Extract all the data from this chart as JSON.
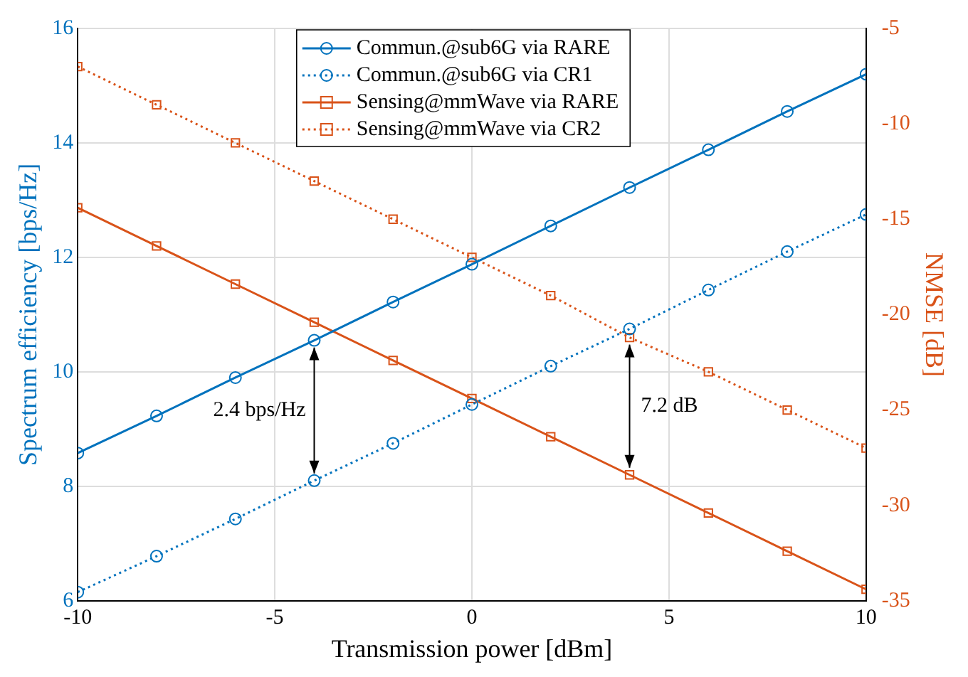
{
  "chart_data": {
    "type": "line",
    "xlabel": "Transmission power [dBm]",
    "ylabel": "Spectrum efficiency [bps/Hz]",
    "y2label": "NMSE [dB]",
    "x": [
      -10,
      -8,
      -6,
      -4,
      -2,
      0,
      2,
      4,
      6,
      8,
      10
    ],
    "series": [
      {
        "name": "Commun.@sub6G via RARE",
        "color": "#0072bd",
        "marker": "circle",
        "line_style": "solid",
        "values": [
          8.58,
          9.23,
          9.9,
          10.55,
          11.22,
          11.88,
          12.55,
          13.22,
          13.88,
          14.55,
          15.2
        ]
      },
      {
        "name": "Commun.@sub6G via CR1",
        "color": "#0072bd",
        "marker": "circle",
        "line_style": "dotted",
        "values": [
          6.15,
          6.78,
          7.43,
          8.1,
          8.75,
          9.43,
          10.1,
          10.75,
          11.43,
          12.1,
          12.75
        ]
      },
      {
        "name": "Sensing@mmWave via RARE",
        "color": "#d95319",
        "marker": "square",
        "line_style": "solid",
        "axis": "y2",
        "values": [
          -14.4,
          -16.4,
          -18.4,
          -20.4,
          -22.4,
          -24.4,
          -26.4,
          -28.4,
          -30.4,
          -32.4,
          -34.4
        ]
      },
      {
        "name": "Sensing@mmWave via CR2",
        "color": "#d95319",
        "marker": "square",
        "line_style": "dotted",
        "axis": "y2",
        "values": [
          -7,
          -9,
          -11,
          -13,
          -15,
          -17,
          -19,
          -21.2,
          -23,
          -25,
          -27
        ]
      }
    ],
    "xlim": [
      -10,
      10
    ],
    "xticks": [
      -10,
      -5,
      0,
      5,
      10
    ],
    "ylim": [
      6,
      16
    ],
    "yticks": [
      6,
      8,
      10,
      12,
      14,
      16
    ],
    "y2lim": [
      -35,
      -5
    ],
    "y2ticks": [
      -35,
      -30,
      -25,
      -20,
      -15,
      -10,
      -5
    ],
    "grid": true,
    "legend": "top",
    "annotations": [
      "2.4 bps/Hz",
      "7.2 dB"
    ]
  }
}
